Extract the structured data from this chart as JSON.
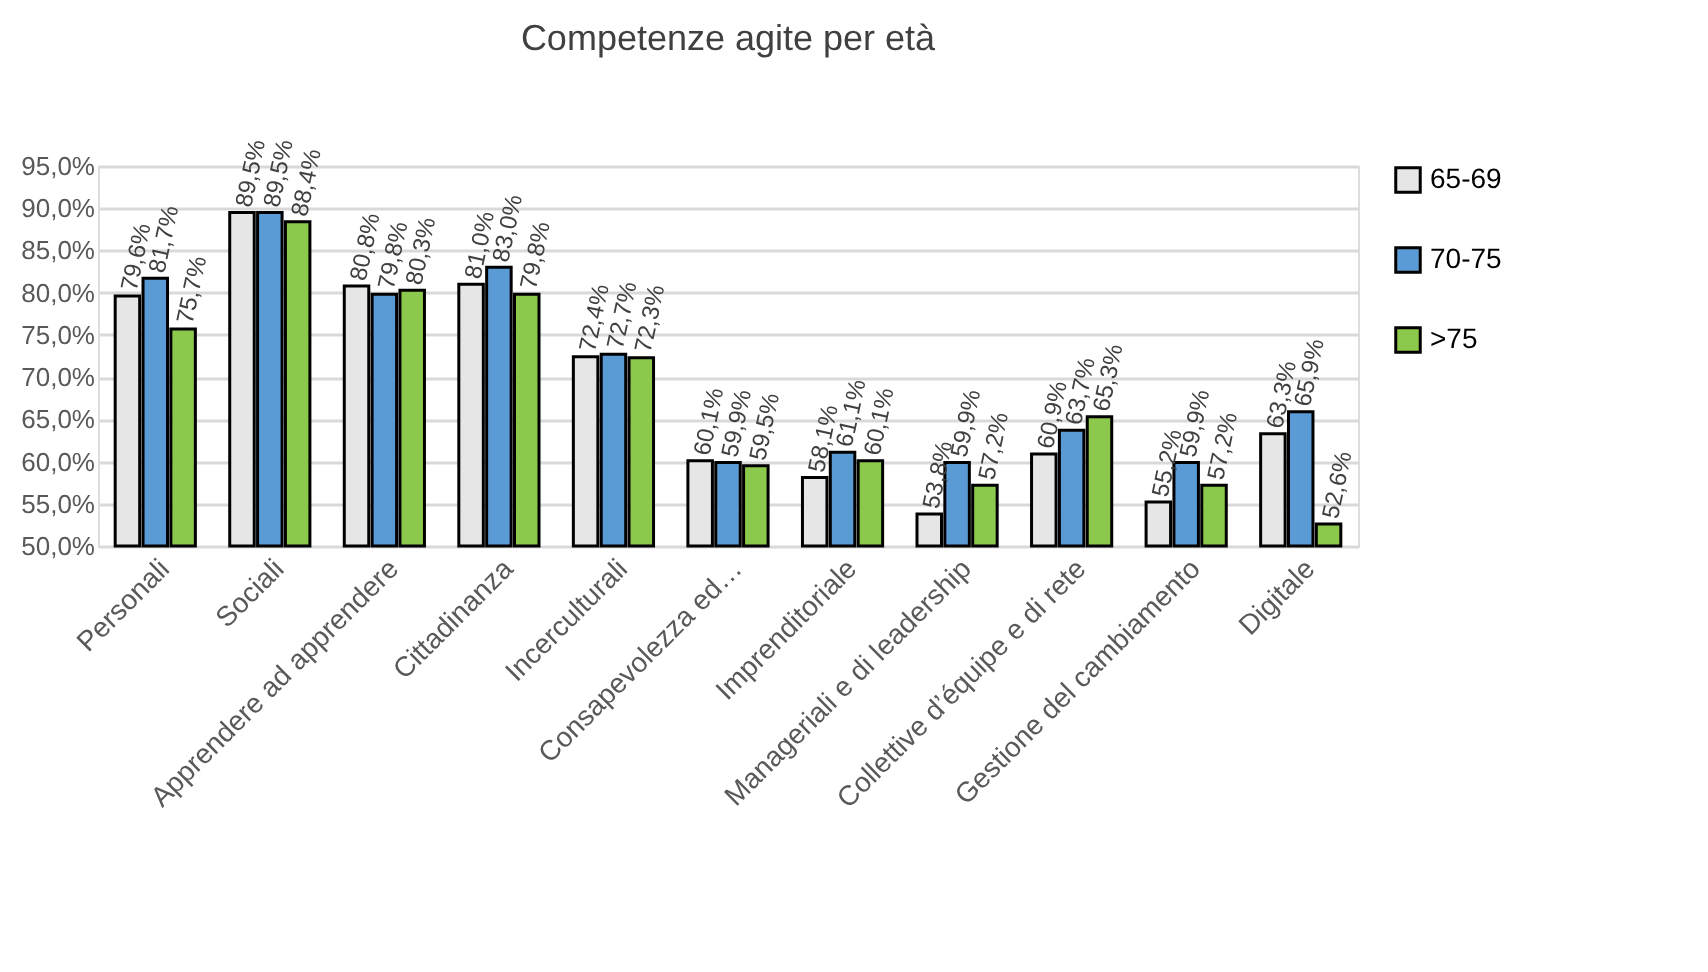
{
  "chart_data": {
    "type": "bar",
    "title": "Competenze agite per età",
    "categories": [
      "Personali",
      "Sociali",
      "Apprendere ad apprendere",
      "Cittadinanza",
      "Incerculturali",
      "Consapevolezza ed…",
      "Imprenditoriale",
      "Manageriali e di leadership",
      "Collettive d’équipe e di rete",
      "Gestione del cambiamento",
      "Digitale"
    ],
    "series": [
      {
        "name": "65-69",
        "color": "#e7e6e6",
        "values": [
          79.6,
          89.5,
          80.8,
          81.0,
          72.4,
          60.1,
          58.1,
          53.8,
          60.9,
          55.2,
          63.3
        ],
        "value_labels": [
          "79,6%",
          "89,5%",
          "80,8%",
          "81,0%",
          "72,4%",
          "60,1%",
          "58,1%",
          "53,8%",
          "60,9%",
          "55,2%",
          "63,3%"
        ]
      },
      {
        "name": "70-75",
        "color": "#5b9bd5",
        "values": [
          81.7,
          89.5,
          79.8,
          83.0,
          72.7,
          59.9,
          61.1,
          59.9,
          63.7,
          59.9,
          65.9
        ],
        "value_labels": [
          "81,7%",
          "89,5%",
          "79,8%",
          "83,0%",
          "72,7%",
          "59,9%",
          "61,1%",
          "59,9%",
          "63,7%",
          "59,9%",
          "65,9%"
        ]
      },
      {
        "name": ">75",
        "color": "#8cc84b",
        "values": [
          75.7,
          88.4,
          80.3,
          79.8,
          72.3,
          59.5,
          60.1,
          57.2,
          65.3,
          57.2,
          52.6
        ],
        "value_labels": [
          "75,7%",
          "88,4%",
          "80,3%",
          "79,8%",
          "72,3%",
          "59,5%",
          "60,1%",
          "57,2%",
          "65,3%",
          "57,2%",
          "52,6%"
        ]
      }
    ],
    "ylim": [
      50,
      95
    ],
    "yticks": [
      {
        "value": 50,
        "label": "50,0%"
      },
      {
        "value": 55,
        "label": "55,0%"
      },
      {
        "value": 60,
        "label": "60,0%"
      },
      {
        "value": 65,
        "label": "65,0%"
      },
      {
        "value": 70,
        "label": "70,0%"
      },
      {
        "value": 75,
        "label": "75,0%"
      },
      {
        "value": 80,
        "label": "80,0%"
      },
      {
        "value": 85,
        "label": "85,0%"
      },
      {
        "value": 90,
        "label": "90,0%"
      },
      {
        "value": 95,
        "label": "95,0%"
      }
    ],
    "grid": "y",
    "legend": "right"
  }
}
